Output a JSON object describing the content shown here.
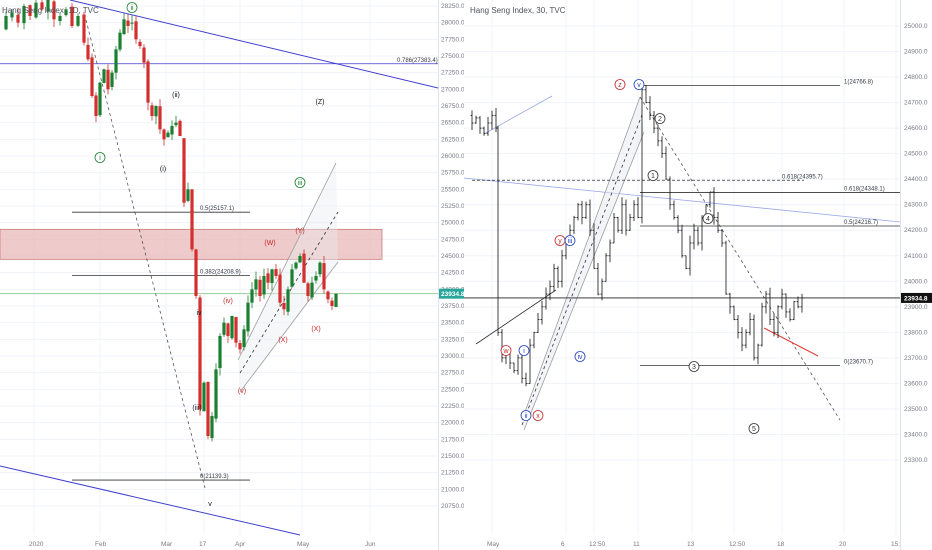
{
  "left_chart": {
    "title": "Hang Seng Index, 1D, TVC",
    "price_label": "23934.8",
    "y_ticks": [
      "28250.0",
      "28000.0",
      "27750.0",
      "27500.0",
      "27250.0",
      "27000.0",
      "26750.0",
      "26500.0",
      "26250.0",
      "26000.0",
      "25750.0",
      "25500.0",
      "25250.0",
      "25000.0",
      "24750.0",
      "24500.0",
      "24250.0",
      "24000.0",
      "23750.0",
      "23500.0",
      "23250.0",
      "23000.0",
      "22750.0",
      "22500.0",
      "22250.0",
      "22000.0",
      "21750.0",
      "21500.0",
      "21250.0",
      "21000.0",
      "20750.0"
    ],
    "x_ticks": [
      "2020",
      "Feb",
      "Mar",
      "17",
      "Apr",
      "May",
      "Jun"
    ],
    "fib_labels": [
      "0.786(27383.4)",
      "0.5(25157.1)",
      "0.382(24208.9)",
      "0(21139.3)"
    ],
    "wave_labels": [
      "i",
      "ii",
      "iii",
      "iv",
      "v",
      "(i)",
      "(ii)",
      "(iii)",
      "(iv)",
      "(v)",
      "(W)",
      "(X)",
      "(Y)",
      "(X)",
      "(Z)",
      "(X)",
      "?"
    ],
    "colors": {
      "up": "#1a7f2e",
      "down": "#d32f2f",
      "zone": "#e8b4b4",
      "channel": "#3f3fd0",
      "price": "#26a69a"
    }
  },
  "right_chart": {
    "title": "Hang Seng Index, 30, TVC",
    "price_label": "23934.8",
    "y_ticks": [
      "25000.0",
      "24900.0",
      "24800.0",
      "24700.0",
      "24600.0",
      "24500.0",
      "24400.0",
      "24300.0",
      "24200.0",
      "24100.0",
      "24000.0",
      "23900.0",
      "23800.0",
      "23700.0",
      "23600.0",
      "23500.0",
      "23400.0",
      "23300.0"
    ],
    "x_ticks": [
      "May",
      "6",
      "12:50",
      "11",
      "13",
      "12:50",
      "18",
      "20",
      "15:20"
    ],
    "fib_labels": [
      "1(24766.8)",
      "0.618(24395.7)",
      "0.618(24348.1)",
      "0.5(24216.7)",
      "0(23670.7)"
    ],
    "wave_labels": [
      "w",
      "i",
      "ii",
      "x",
      "y",
      "iii",
      "iv",
      "z",
      "v",
      "1",
      "2",
      "3",
      "4",
      "5"
    ]
  },
  "chart_data": [
    {
      "type": "line",
      "title": "Hang Seng Index, 1D, TVC",
      "xlabel": "",
      "ylabel": "",
      "x": [
        "2020",
        "Feb",
        "Mar",
        "17",
        "Apr",
        "May",
        "Jun"
      ],
      "ylim": [
        20700,
        28350
      ],
      "last_price": 23934.8,
      "fib_levels": [
        {
          "label": "0.786",
          "value": 27383.4
        },
        {
          "label": "0.5",
          "value": 25157.1
        },
        {
          "label": "0.382",
          "value": 24208.9
        },
        {
          "label": "0",
          "value": 21139.3
        }
      ],
      "zone": [
        24450,
        24900
      ]
    },
    {
      "type": "line",
      "title": "Hang Seng Index, 30, TVC",
      "xlabel": "",
      "ylabel": "",
      "x": [
        "May",
        "6",
        "12:50",
        "11",
        "13",
        "12:50",
        "18",
        "20",
        "15:20"
      ],
      "ylim": [
        23250,
        25050
      ],
      "last_price": 23934.8,
      "fib_levels": [
        {
          "label": "1",
          "value": 24766.8
        },
        {
          "label": "0.618",
          "value": 24395.7
        },
        {
          "label": "0.618",
          "value": 24348.1
        },
        {
          "label": "0.5",
          "value": 24216.7
        },
        {
          "label": "0",
          "value": 23670.7
        }
      ]
    }
  ]
}
